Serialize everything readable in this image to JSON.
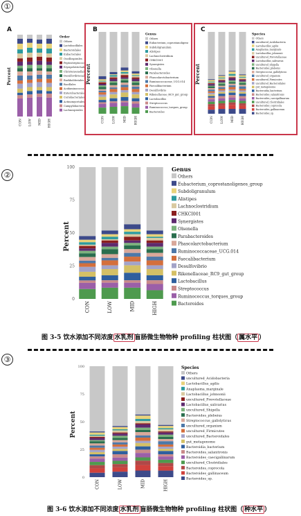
{
  "markers": [
    "①",
    "②",
    "③"
  ],
  "panel_labels": [
    "A",
    "B",
    "C"
  ],
  "captions": {
    "fig35": {
      "prefix": "图 3-5 饮水添加不同浓度",
      "hl1": "水乳剂",
      "mid": "盲肠微生物物种 profiling 柱状图",
      "hl2": "属水平"
    },
    "fig36": {
      "prefix": "图 3-6 饮水添加不同浓度",
      "hl1": "水乳剂",
      "mid": "盲肠微生物物种 profiling 柱状图",
      "hl2": "种水平"
    }
  },
  "colors": {
    "highlight_box": "#c9364a",
    "palette": [
      "#c8c8c8",
      "#3d4a8a",
      "#e8d27a",
      "#2d9a9e",
      "#d9c9a0",
      "#8a1f1f",
      "#5e2a6e",
      "#7cb27c",
      "#2a6e4e",
      "#d9a89a",
      "#4d78a8",
      "#d46f3c",
      "#a3a3c8",
      "#d4c066",
      "#2f5f9e",
      "#c98a8a",
      "#9b5fa8",
      "#4e9a4e",
      "#b04848",
      "#d0413c"
    ]
  },
  "chart_data": [
    {
      "id": "A",
      "type": "bar",
      "stacked": true,
      "title": "",
      "ylabel": "Percent",
      "categories": [
        "CON",
        "LOW",
        "MID",
        "HIGH"
      ],
      "legend_title": "Order",
      "legend": [
        "Others",
        "Lactobacillales",
        "Bacteroidales",
        "Eubacteriales",
        "Oscillospirales",
        "Peptostreptococcales",
        "Erysipelotrichales",
        "Christensenellales",
        "Desulfovibrionales",
        "Burkholderiales",
        "Bacillales",
        "Acidaminococcales",
        "Enterobacterales",
        "Coriobacteriales",
        "Actinomycetales",
        "Campylobacterales",
        "Lachnospirales"
      ],
      "series_values": [
        [
          0.05,
          0.06,
          0.07,
          0.05,
          0.06,
          0.04,
          0.05,
          0.03,
          0.04,
          0.05,
          0.06,
          0.04,
          0.06,
          0.05,
          0.03,
          0.04,
          0.22
        ],
        [
          0.05,
          0.05,
          0.06,
          0.06,
          0.06,
          0.05,
          0.04,
          0.04,
          0.04,
          0.05,
          0.05,
          0.04,
          0.05,
          0.05,
          0.04,
          0.04,
          0.23
        ],
        [
          0.06,
          0.05,
          0.06,
          0.05,
          0.05,
          0.05,
          0.05,
          0.04,
          0.03,
          0.05,
          0.05,
          0.04,
          0.06,
          0.04,
          0.04,
          0.04,
          0.24
        ],
        [
          0.05,
          0.06,
          0.06,
          0.06,
          0.05,
          0.05,
          0.04,
          0.04,
          0.04,
          0.04,
          0.05,
          0.05,
          0.05,
          0.05,
          0.03,
          0.05,
          0.23
        ]
      ]
    },
    {
      "id": "B",
      "type": "bar",
      "stacked": true,
      "title": "",
      "ylabel": "Percent",
      "categories": [
        "CON",
        "LOW",
        "MID",
        "HIGH"
      ],
      "legend_title": "Genus",
      "legend": [
        "Others",
        "Eubacterium_coprostanoligenes_group",
        "Subdoligranulum",
        "Alistipes",
        "Lachnoclostridium",
        "CHKCI001",
        "Synergistes",
        "Olsenella",
        "Parabacteroides",
        "Phascolarctobacterium",
        "Ruminococcaceae_UCG.014",
        "Faecalibacterium",
        "Desulfovibrio",
        "Rikenellaceae_RC9_gut_group",
        "Lactobacillus",
        "Streptococcus",
        "Ruminococcus_torques_group",
        "Bacteroides"
      ],
      "series_values": [
        [
          0.58,
          0.04,
          0.02,
          0.01,
          0.01,
          0.02,
          0.02,
          0.02,
          0.03,
          0.02,
          0.02,
          0.03,
          0.03,
          0.04,
          0.03,
          0.02,
          0.05,
          0.08
        ],
        [
          0.52,
          0.03,
          0.01,
          0.02,
          0.01,
          0.02,
          0.03,
          0.02,
          0.03,
          0.03,
          0.02,
          0.04,
          0.03,
          0.05,
          0.04,
          0.02,
          0.05,
          0.09
        ],
        [
          0.47,
          0.04,
          0.02,
          0.02,
          0.02,
          0.03,
          0.02,
          0.02,
          0.03,
          0.03,
          0.03,
          0.04,
          0.03,
          0.06,
          0.05,
          0.02,
          0.05,
          0.1
        ],
        [
          0.51,
          0.03,
          0.02,
          0.01,
          0.02,
          0.02,
          0.03,
          0.02,
          0.03,
          0.02,
          0.03,
          0.04,
          0.03,
          0.05,
          0.04,
          0.03,
          0.05,
          0.08
        ]
      ]
    },
    {
      "id": "C",
      "type": "bar",
      "stacked": true,
      "title": "",
      "ylabel": "Percent",
      "categories": [
        "CON",
        "LOW",
        "MID",
        "HIGH"
      ],
      "legend_title": "Species",
      "legend": [
        "Others",
        "uncultured_Acidobacteria",
        "Lactobacillus_agilis",
        "Anaplasma_marginale",
        "Lactobacillus_johnsonii",
        "uncultured_Prevotellaceae",
        "Lactobacillus_salivarius",
        "uncultured_Shigella",
        "Bacteroides_plebeius",
        "Streptococcus_gallolyticus",
        "uncultured_organism",
        "uncultured_Firmicutes",
        "uncultured_Bacteroidales",
        "gut_metagenome",
        "Bacteroidia_bacterium",
        "Bacteroides_salanitronis",
        "Bacteroides_caecigallinarum",
        "uncultured_Clostridiales",
        "Bacteroides_coprocola",
        "Bacteroides_gallinaceum",
        "Bacteroides_sp."
      ],
      "series_values": [
        [
          0.59,
          0.01,
          0.02,
          0.01,
          0.01,
          0.01,
          0.02,
          0.01,
          0.02,
          0.02,
          0.02,
          0.02,
          0.02,
          0.02,
          0.02,
          0.02,
          0.03,
          0.03,
          0.03,
          0.04,
          0.05
        ],
        [
          0.54,
          0.01,
          0.02,
          0.01,
          0.02,
          0.01,
          0.02,
          0.02,
          0.02,
          0.02,
          0.02,
          0.02,
          0.02,
          0.02,
          0.03,
          0.03,
          0.03,
          0.03,
          0.03,
          0.04,
          0.06
        ],
        [
          0.48,
          0.01,
          0.03,
          0.02,
          0.02,
          0.01,
          0.03,
          0.02,
          0.02,
          0.02,
          0.02,
          0.03,
          0.02,
          0.02,
          0.03,
          0.03,
          0.03,
          0.03,
          0.03,
          0.05,
          0.06
        ],
        [
          0.53,
          0.01,
          0.02,
          0.01,
          0.02,
          0.01,
          0.02,
          0.02,
          0.02,
          0.02,
          0.03,
          0.02,
          0.02,
          0.02,
          0.03,
          0.03,
          0.03,
          0.03,
          0.03,
          0.04,
          0.06
        ]
      ]
    },
    {
      "id": "genus-large",
      "type": "bar",
      "stacked": true,
      "title": "",
      "ylabel": "Percent",
      "yticks": [
        "0",
        "25",
        "50",
        "75",
        "100"
      ],
      "categories": [
        "CON",
        "LOW",
        "MID",
        "HIGH"
      ],
      "legend_title": "Genus",
      "legend": [
        "Others",
        "Eubacterium_coprostanoligenes_group",
        "Subdoligranulum",
        "Alistipes",
        "Lachnoclostridium",
        "CHKCI001",
        "Synergistes",
        "Olsenella",
        "Parabacteroides",
        "Phascolarctobacterium",
        "Ruminococcaceae_UCG.014",
        "Faecalibacterium",
        "Desulfovibrio",
        "Rikenellaceae_RC9_gut_group",
        "Lactobacillus",
        "Streptococcus",
        "Ruminococcus_torques_group",
        "Bacteroides"
      ],
      "series_values": [
        [
          0.56,
          0.03,
          0.02,
          0.02,
          0.01,
          0.02,
          0.02,
          0.02,
          0.03,
          0.03,
          0.02,
          0.03,
          0.04,
          0.04,
          0.03,
          0.02,
          0.05,
          0.08
        ],
        [
          0.51,
          0.03,
          0.02,
          0.02,
          0.01,
          0.02,
          0.03,
          0.02,
          0.04,
          0.03,
          0.02,
          0.04,
          0.03,
          0.05,
          0.04,
          0.02,
          0.04,
          0.09
        ],
        [
          0.46,
          0.04,
          0.02,
          0.02,
          0.02,
          0.03,
          0.02,
          0.02,
          0.03,
          0.03,
          0.03,
          0.04,
          0.03,
          0.06,
          0.06,
          0.02,
          0.04,
          0.09
        ],
        [
          0.51,
          0.03,
          0.02,
          0.01,
          0.02,
          0.02,
          0.03,
          0.02,
          0.03,
          0.03,
          0.03,
          0.04,
          0.03,
          0.05,
          0.04,
          0.03,
          0.05,
          0.07
        ]
      ]
    },
    {
      "id": "species-large",
      "type": "bar",
      "stacked": true,
      "title": "",
      "ylabel": "Percent",
      "yticks": [
        "0",
        "25",
        "50",
        "75",
        "100"
      ],
      "categories": [
        "CON",
        "LOW",
        "MID",
        "HIGH"
      ],
      "legend_title": "Species",
      "legend": [
        "Others",
        "uncultured_Acidobacteria",
        "Lactobacillus_agilis",
        "Anaplasma_marginale",
        "Lactobacillus_johnsonii",
        "uncultured_Prevotellaceae",
        "Lactobacillus_salivarius",
        "uncultured_Shigella",
        "Bacteroides_plebeius",
        "Streptococcus_gallolyticus",
        "uncultured_organism",
        "uncultured_Firmicutes",
        "uncultured_Bacteroidales",
        "gut_metagenome",
        "Bacteroidia_bacterium",
        "Bacteroides_salanitronis",
        "Bacteroides_caecigallinarum",
        "uncultured_Clostridiales",
        "Bacteroides_coprocola",
        "Bacteroides_gallinaceum",
        "Bacteroides_sp."
      ],
      "series_values": [
        [
          0.6,
          0.01,
          0.02,
          0.01,
          0.01,
          0.01,
          0.02,
          0.01,
          0.02,
          0.02,
          0.02,
          0.02,
          0.02,
          0.02,
          0.02,
          0.02,
          0.03,
          0.03,
          0.03,
          0.04,
          0.04
        ],
        [
          0.55,
          0.01,
          0.02,
          0.01,
          0.02,
          0.01,
          0.02,
          0.02,
          0.02,
          0.02,
          0.02,
          0.02,
          0.02,
          0.02,
          0.03,
          0.03,
          0.03,
          0.03,
          0.03,
          0.04,
          0.05
        ],
        [
          0.44,
          0.01,
          0.03,
          0.02,
          0.02,
          0.01,
          0.03,
          0.02,
          0.02,
          0.03,
          0.02,
          0.03,
          0.02,
          0.03,
          0.03,
          0.03,
          0.04,
          0.03,
          0.04,
          0.05,
          0.06
        ],
        [
          0.54,
          0.01,
          0.02,
          0.01,
          0.02,
          0.01,
          0.02,
          0.02,
          0.02,
          0.02,
          0.03,
          0.02,
          0.02,
          0.02,
          0.03,
          0.02,
          0.03,
          0.03,
          0.03,
          0.04,
          0.06
        ]
      ]
    }
  ]
}
